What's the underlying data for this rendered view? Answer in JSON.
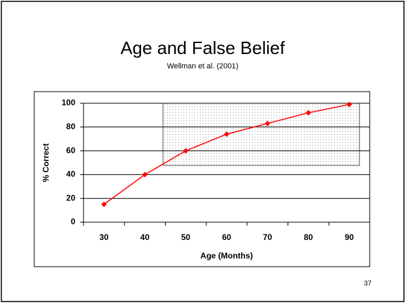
{
  "chart_data": {
    "type": "line",
    "title": "Age and False Belief",
    "subtitle": "Wellman et al. (2001)",
    "x_label": "Age (Months)",
    "y_label": "% Correct",
    "categories": [
      "30",
      "40",
      "50",
      "60",
      "70",
      "80",
      "90"
    ],
    "series": [
      {
        "name": "% Correct",
        "color": "#ff0000",
        "values": [
          15,
          40,
          60,
          74,
          83,
          92,
          99
        ]
      }
    ],
    "ylim": [
      0,
      100
    ],
    "yticks": [
      0,
      20,
      40,
      60,
      80,
      100
    ],
    "grid": true
  },
  "page_number": "37"
}
